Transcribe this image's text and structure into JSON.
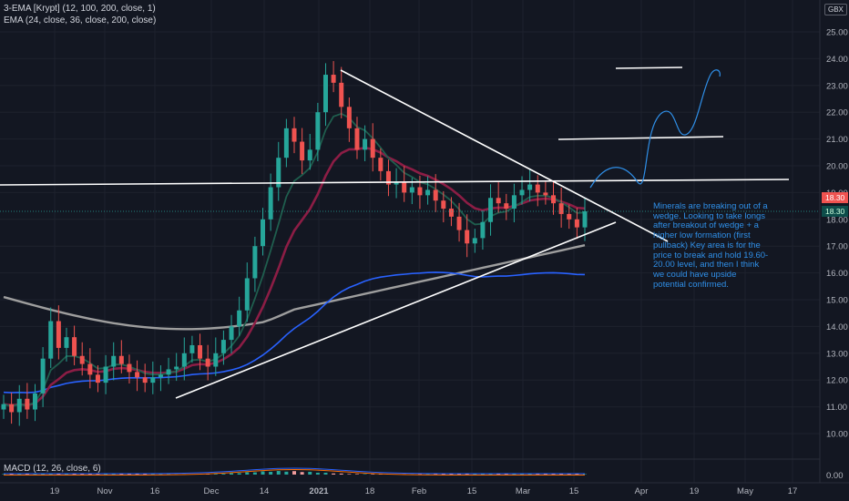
{
  "indicators": {
    "ema3": "3-EMA [Krypt] (12, 100, 200, close, 1)",
    "ema": "EMA (24, close, 36, close, 200, close)",
    "macd": "MACD (12, 26, close, 6)"
  },
  "currency": "GBX",
  "price_badges": [
    "18.30",
    "18.30"
  ],
  "annotation": "Minerals are breaking out of a wedge. Looking to take longs after breakout of wedge + a higher low formation (first pullback) Key area is for the price to break and hold 19.60-20.00 level, and then I think we could have upside potential confirmed.",
  "colors": {
    "background": "#131722",
    "up": "#26a69a",
    "down": "#ef5350",
    "ema_fast": "#1f5e4e",
    "ema_mid": "#8c1d45",
    "ema_blue": "#2962ff",
    "ema_gray": "#9e9e9e",
    "annotation": "#2f8fe8"
  },
  "chart_data": {
    "type": "candlestick",
    "ylim": [
      9.5,
      25.5
    ],
    "y_ticks": [
      "10.00",
      "11.00",
      "12.00",
      "13.00",
      "14.00",
      "15.00",
      "16.00",
      "17.00",
      "18.00",
      "19.00",
      "20.00",
      "21.00",
      "22.00",
      "23.00",
      "24.00",
      "25.00"
    ],
    "x_ticks": [
      "19",
      "Nov",
      "16",
      "Dec",
      "14",
      "2021",
      "18",
      "Feb",
      "15",
      "Mar",
      "15",
      "Apr",
      "19",
      "May",
      "17"
    ],
    "macd_ticks": [
      "0.00"
    ],
    "last_price": 18.3,
    "ohlc_path": [
      11.1,
      10.8,
      11.3,
      10.9,
      11.5,
      12.8,
      14.2,
      13.2,
      13.6,
      12.9,
      12.6,
      12.2,
      11.9,
      12.5,
      12.9,
      12.6,
      12.3,
      12.1,
      11.9,
      12.1,
      12.2,
      12.4,
      12.5,
      13.0,
      13.3,
      12.8,
      12.5,
      13.0,
      13.5,
      14.0,
      14.6,
      15.8,
      17.0,
      18.0,
      19.2,
      20.3,
      21.4,
      20.9,
      20.2,
      20.6,
      22.0,
      23.4,
      23.1,
      22.2,
      21.4,
      20.6,
      21.0,
      20.3,
      19.8,
      19.3,
      19.4,
      19.0,
      19.2,
      18.9,
      19.1,
      18.7,
      18.4,
      18.1,
      17.6,
      17.1,
      17.3,
      17.9,
      18.8,
      18.6,
      18.4,
      18.9,
      19.1,
      19.3,
      19.0,
      18.9,
      18.6,
      18.2,
      18.0,
      17.7,
      18.3
    ]
  }
}
